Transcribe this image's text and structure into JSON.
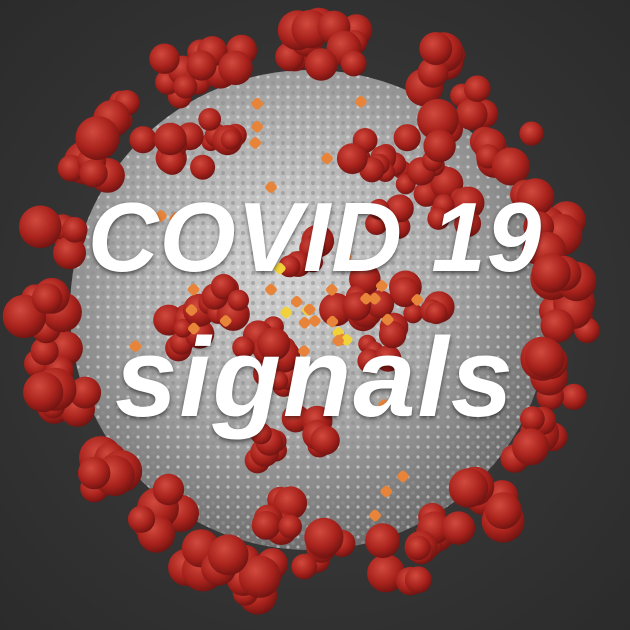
{
  "caption": {
    "line1": "COVID 19",
    "line2": "signals"
  },
  "colors": {
    "background": "#3a3a3a",
    "virion_body": "#b8b8b8",
    "spike_protein": "#b0241f",
    "m_protein": "#e8843a",
    "e_protein": "#f2d23a",
    "text": "#ffffff"
  },
  "image": {
    "subject": "coronavirus-virion-illustration"
  }
}
